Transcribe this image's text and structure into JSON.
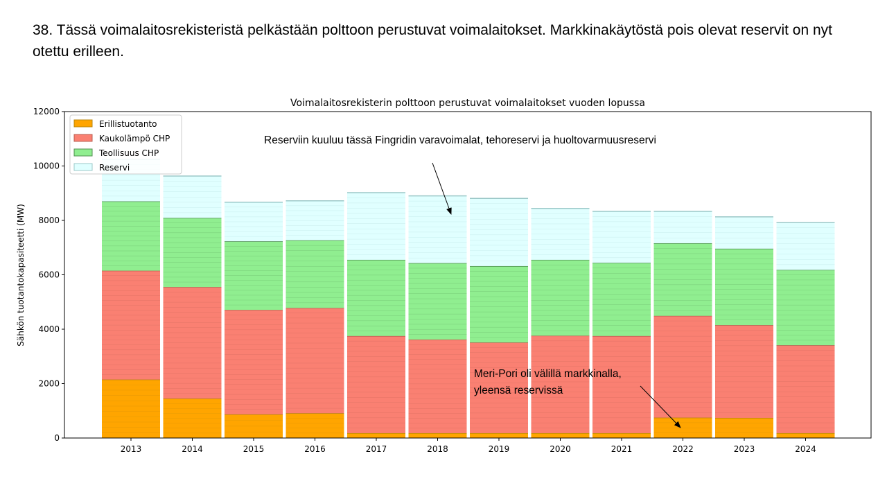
{
  "slide": {
    "title": "38. Tässä voimalaitosrekisteristä pelkästään polttoon perustuvat voimalaitokset. Markkinakäytöstä pois olevat reservit on nyt otettu erilleen."
  },
  "annotations": {
    "reserve_note": "Reserviin kuuluu tässä Fingridin varavoimalat, tehoreservi ja huoltovarmuusreservi",
    "meripori_note_line1": "Meri-Pori oli välillä markkinalla,",
    "meripori_note_line2": "yleensä reservissä"
  },
  "chart_data": {
    "type": "bar",
    "stacked": true,
    "title": "Voimalaitosrekisterin polttoon perustuvat voimalaitokset vuoden lopussa",
    "xlabel": "",
    "ylabel": "Sähkön tuotantokapasiteetti (MW)",
    "ylim": [
      0,
      12000
    ],
    "yticks": [
      0,
      2000,
      4000,
      6000,
      8000,
      10000,
      12000
    ],
    "grid": false,
    "legend_position": "top-left",
    "categories": [
      "2013",
      "2014",
      "2015",
      "2016",
      "2017",
      "2018",
      "2019",
      "2020",
      "2021",
      "2022",
      "2023",
      "2024"
    ],
    "series": [
      {
        "name": "Erillistuotanto",
        "color": "#ffa500",
        "values": [
          2150,
          1450,
          870,
          910,
          180,
          180,
          180,
          180,
          180,
          750,
          740,
          180
        ]
      },
      {
        "name": "Kaukolämpö CHP",
        "color": "#fa8072",
        "values": [
          4000,
          4100,
          3840,
          3870,
          3570,
          3440,
          3330,
          3580,
          3570,
          3740,
          3410,
          3230
        ]
      },
      {
        "name": "Teollisuus CHP",
        "color": "#90ee90",
        "values": [
          2550,
          2540,
          2520,
          2490,
          2800,
          2810,
          2810,
          2790,
          2690,
          2670,
          2810,
          2770
        ]
      },
      {
        "name": "Reservi",
        "color": "#e0ffff",
        "values": [
          1550,
          1540,
          1440,
          1450,
          2470,
          2470,
          2490,
          1890,
          1890,
          1170,
          1170,
          1740
        ]
      }
    ]
  }
}
